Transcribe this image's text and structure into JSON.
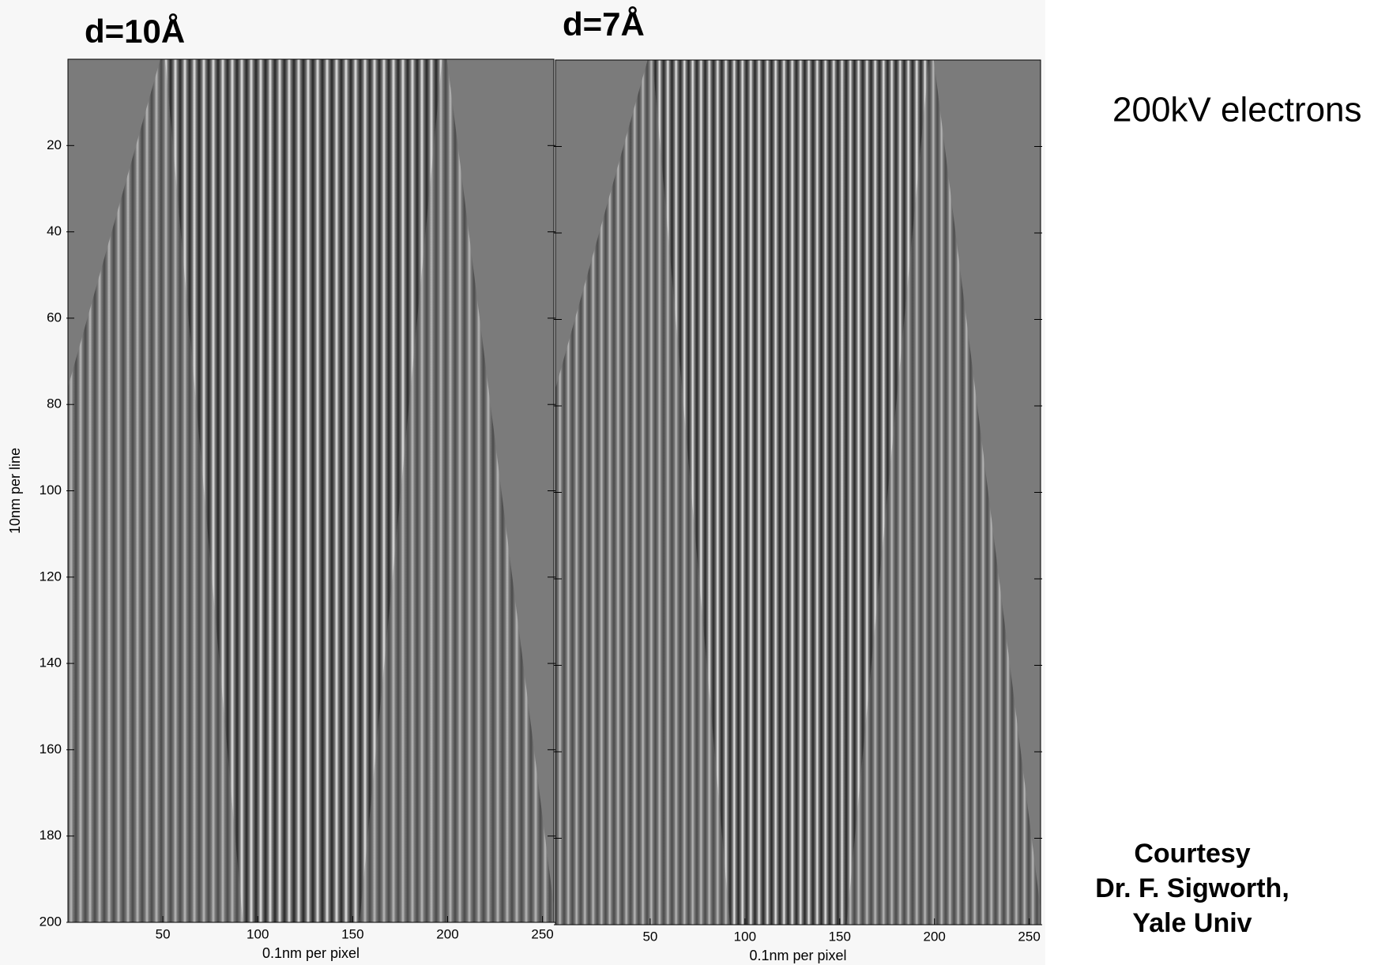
{
  "chart_data": [
    {
      "type": "image",
      "title": "d=10Å",
      "xlabel": "0.1nm per pixel",
      "ylabel": "10nm per line",
      "xlim": [
        0,
        256
      ],
      "ylim": [
        0,
        200
      ],
      "y_reversed": true,
      "xticks": [
        50,
        100,
        150,
        200,
        250
      ],
      "yticks": [
        20,
        40,
        60,
        80,
        100,
        120,
        140,
        160,
        180,
        200
      ],
      "ytick_labels": true
    },
    {
      "type": "image",
      "title": "d=7Å",
      "xlabel": "0.1nm per pixel",
      "xlim": [
        0,
        256
      ],
      "ylim": [
        0,
        200
      ],
      "y_reversed": true,
      "xticks": [
        50,
        100,
        150,
        200,
        250
      ],
      "yticks": [
        20,
        40,
        60,
        80,
        100,
        120,
        140,
        160,
        180,
        200
      ],
      "ytick_labels": false
    }
  ],
  "annotations": {
    "beam": "200kV electrons",
    "credit": [
      "Courtesy",
      "Dr. F. Sigworth,",
      "Yale Univ"
    ]
  }
}
